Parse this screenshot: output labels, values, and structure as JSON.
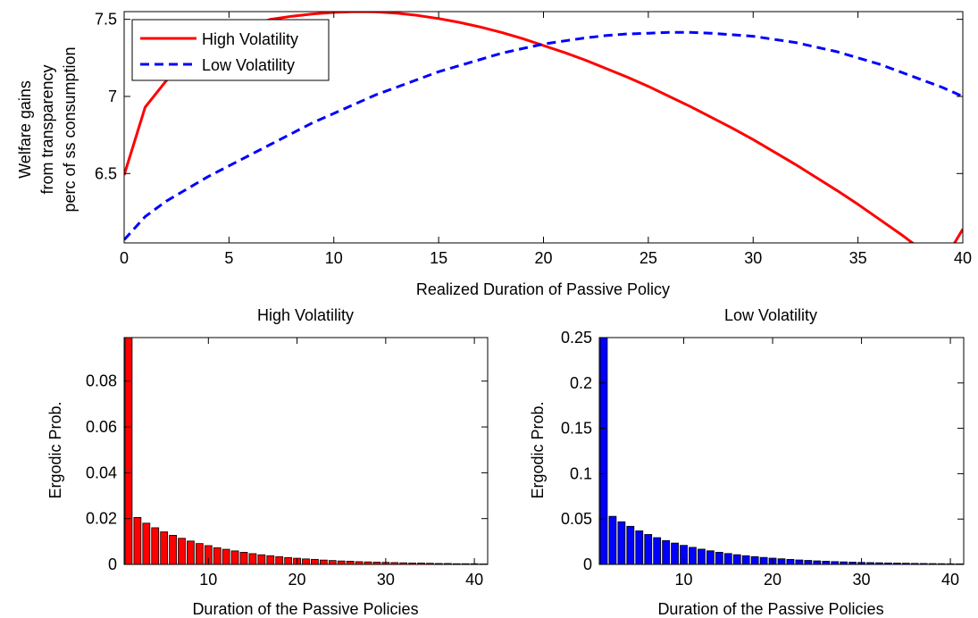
{
  "chart_data": [
    {
      "type": "line",
      "title": "",
      "xlabel": "Realized Duration of Passive Policy",
      "ylabel": [
        "Welfare gains",
        "from transparency",
        "perc of ss consumption"
      ],
      "xlim": [
        0,
        40
      ],
      "ylim": [
        6.05,
        7.55
      ],
      "xticks": [
        0,
        5,
        10,
        15,
        20,
        25,
        30,
        35,
        40
      ],
      "yticks": [
        6.5,
        7,
        7.5
      ],
      "ytick_labels": [
        "6.5",
        "7",
        "7.5"
      ],
      "grid": false,
      "legend_position": "top-left",
      "series": [
        {
          "name": "High Volatility",
          "color": "#ff0000",
          "style": "solid",
          "x": [
            0,
            1,
            2,
            3,
            4,
            5,
            6,
            7,
            8,
            9,
            10,
            11,
            12,
            13,
            14,
            15,
            16,
            17,
            18,
            19,
            20,
            21,
            22,
            23,
            24,
            25,
            26,
            27,
            28,
            29,
            30,
            31,
            32,
            33,
            34,
            35,
            36,
            37,
            38,
            39,
            40
          ],
          "y": [
            6.49,
            6.93,
            7.1,
            7.24,
            7.34,
            7.41,
            7.46,
            7.5,
            7.52,
            7.535,
            7.545,
            7.55,
            7.548,
            7.54,
            7.525,
            7.505,
            7.48,
            7.45,
            7.415,
            7.375,
            7.33,
            7.285,
            7.235,
            7.18,
            7.125,
            7.065,
            7.0,
            6.935,
            6.865,
            6.795,
            6.72,
            6.64,
            6.56,
            6.475,
            6.39,
            6.3,
            6.205,
            6.11,
            6.01,
            5.91,
            6.14
          ]
        },
        {
          "name": "Low Volatility",
          "color": "#0000ff",
          "style": "dashed",
          "x": [
            0,
            1,
            2,
            3,
            4,
            5,
            6,
            7,
            8,
            9,
            10,
            11,
            12,
            13,
            14,
            15,
            16,
            17,
            18,
            19,
            20,
            21,
            22,
            23,
            24,
            25,
            26,
            27,
            28,
            29,
            30,
            31,
            32,
            33,
            34,
            35,
            36,
            37,
            38,
            39,
            40
          ],
          "y": [
            6.07,
            6.22,
            6.32,
            6.4,
            6.48,
            6.55,
            6.62,
            6.69,
            6.76,
            6.83,
            6.89,
            6.95,
            7.01,
            7.06,
            7.11,
            7.16,
            7.2,
            7.24,
            7.28,
            7.31,
            7.34,
            7.36,
            7.38,
            7.395,
            7.405,
            7.41,
            7.415,
            7.415,
            7.41,
            7.4,
            7.39,
            7.37,
            7.35,
            7.32,
            7.29,
            7.25,
            7.21,
            7.16,
            7.11,
            7.06,
            7.0
          ]
        }
      ]
    },
    {
      "type": "bar",
      "title": "High Volatility",
      "xlabel": "Duration of the Passive Policies",
      "ylabel": "Ergodic Prob.",
      "xlim": [
        0.5,
        41.5
      ],
      "ylim": [
        0,
        0.099
      ],
      "xticks": [
        10,
        20,
        30,
        40
      ],
      "yticks": [
        0,
        0.02,
        0.04,
        0.06,
        0.08
      ],
      "ytick_labels": [
        "0",
        "0.02",
        "0.04",
        "0.06",
        "0.08"
      ],
      "color": "#ff0000",
      "x": [
        1,
        2,
        3,
        4,
        5,
        6,
        7,
        8,
        9,
        10,
        11,
        12,
        13,
        14,
        15,
        16,
        17,
        18,
        19,
        20,
        21,
        22,
        23,
        24,
        25,
        26,
        27,
        28,
        29,
        30,
        31,
        32,
        33,
        34,
        35,
        36,
        37,
        38,
        39,
        40,
        41
      ],
      "values": [
        0.099,
        0.0205,
        0.018,
        0.016,
        0.0142,
        0.0127,
        0.0114,
        0.0102,
        0.0091,
        0.0082,
        0.0073,
        0.0066,
        0.0059,
        0.0053,
        0.0047,
        0.0042,
        0.0038,
        0.0034,
        0.003,
        0.0027,
        0.0024,
        0.0022,
        0.0019,
        0.0017,
        0.0015,
        0.0014,
        0.0012,
        0.0011,
        0.001,
        0.0009,
        0.0008,
        0.0007,
        0.0006,
        0.0006,
        0.0005,
        0.0004,
        0.0004,
        0.0003,
        0.0003,
        0.0003,
        0.0002
      ]
    },
    {
      "type": "bar",
      "title": "Low Volatility",
      "xlabel": "Duration of the Passive Policies",
      "ylabel": "Ergodic Prob.",
      "xlim": [
        0.5,
        41.5
      ],
      "ylim": [
        0,
        0.25
      ],
      "xticks": [
        10,
        20,
        30,
        40
      ],
      "yticks": [
        0,
        0.05,
        0.1,
        0.15,
        0.2,
        0.25
      ],
      "ytick_labels": [
        "0",
        "0.05",
        "0.1",
        "0.15",
        "0.2",
        "0.25"
      ],
      "color": "#0000ff",
      "x": [
        1,
        2,
        3,
        4,
        5,
        6,
        7,
        8,
        9,
        10,
        11,
        12,
        13,
        14,
        15,
        16,
        17,
        18,
        19,
        20,
        21,
        22,
        23,
        24,
        25,
        26,
        27,
        28,
        29,
        30,
        31,
        32,
        33,
        34,
        35,
        36,
        37,
        38,
        39,
        40,
        41
      ],
      "values": [
        0.25,
        0.053,
        0.047,
        0.042,
        0.037,
        0.033,
        0.0295,
        0.0263,
        0.0235,
        0.021,
        0.0188,
        0.0168,
        0.015,
        0.0134,
        0.012,
        0.0107,
        0.0096,
        0.0086,
        0.0077,
        0.0069,
        0.0062,
        0.0055,
        0.0049,
        0.0044,
        0.0039,
        0.0035,
        0.0031,
        0.0028,
        0.0025,
        0.0022,
        0.002,
        0.0018,
        0.0016,
        0.0014,
        0.0013,
        0.0011,
        0.001,
        0.0009,
        0.0008,
        0.0007,
        0.0006
      ]
    }
  ]
}
